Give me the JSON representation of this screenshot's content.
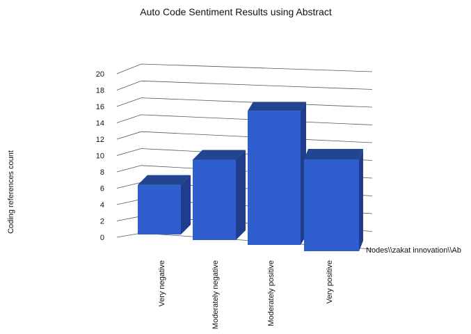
{
  "chart_data": {
    "type": "bar",
    "title": "Auto Code Sentiment Results using Abstract",
    "ylabel": "Coding references count",
    "xlabel": "",
    "categories": [
      "Very negative",
      "Moderately negative",
      "Moderately positive",
      "Very positive"
    ],
    "series": [
      {
        "name": "Nodes\\\\zakat innovation\\\\Ab",
        "values": [
          7,
          11,
          18,
          11
        ]
      }
    ],
    "ylim": [
      0,
      20
    ],
    "yticks": [
      0,
      2,
      4,
      6,
      8,
      10,
      12,
      14,
      16,
      18,
      20
    ],
    "grid": true,
    "legend": "right",
    "style": "3d",
    "colors": {
      "bar_front": "#2f5fcf",
      "bar_top": "#23448f",
      "bar_side": "#1f3d8c",
      "grid": "#555555"
    }
  }
}
